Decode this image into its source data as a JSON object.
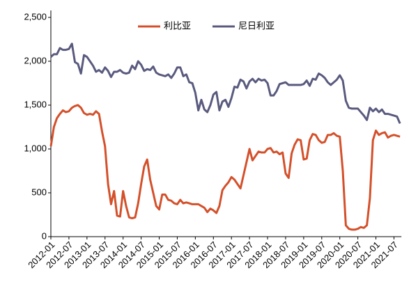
{
  "chart_data": {
    "type": "line",
    "categories": [
      "2012-01",
      null,
      null,
      null,
      null,
      null,
      "2012-07",
      null,
      null,
      null,
      null,
      null,
      "2013-01",
      null,
      null,
      null,
      null,
      null,
      "2013-07",
      null,
      null,
      null,
      null,
      null,
      "2014-01",
      null,
      null,
      null,
      null,
      null,
      "2014-07",
      null,
      null,
      null,
      null,
      null,
      "2015-01",
      null,
      null,
      null,
      null,
      null,
      "2015-07",
      null,
      null,
      null,
      null,
      null,
      "2016-01",
      null,
      null,
      null,
      null,
      null,
      "2016-07",
      null,
      null,
      null,
      null,
      null,
      "2017-01",
      null,
      null,
      null,
      null,
      null,
      "2017-07",
      null,
      null,
      null,
      null,
      null,
      "2018-01",
      null,
      null,
      null,
      null,
      null,
      "2018-07",
      null,
      null,
      null,
      null,
      null,
      "2019-01",
      null,
      null,
      null,
      null,
      null,
      "2019-07",
      null,
      null,
      null,
      null,
      null,
      "2020-01",
      null,
      null,
      null,
      null,
      null,
      "2020-07",
      null,
      null,
      null,
      null,
      null,
      "2021-01",
      null,
      null,
      null,
      null,
      null,
      "2021-07",
      null,
      null
    ],
    "series": [
      {
        "name": "利比亚",
        "color": "#d4502a",
        "values": [
          1030,
          1250,
          1350,
          1400,
          1440,
          1420,
          1430,
          1470,
          1490,
          1500,
          1470,
          1410,
          1390,
          1400,
          1390,
          1430,
          1400,
          1200,
          1030,
          600,
          370,
          520,
          240,
          230,
          520,
          350,
          220,
          210,
          220,
          380,
          600,
          800,
          880,
          650,
          500,
          350,
          310,
          480,
          480,
          420,
          410,
          380,
          370,
          420,
          380,
          390,
          380,
          370,
          370,
          370,
          350,
          330,
          280,
          320,
          300,
          270,
          350,
          530,
          580,
          620,
          680,
          650,
          600,
          550,
          700,
          850,
          1000,
          870,
          920,
          970,
          960,
          960,
          1000,
          1010,
          960,
          970,
          940,
          960,
          720,
          670,
          950,
          1050,
          1110,
          1100,
          880,
          890,
          1100,
          1170,
          1160,
          1100,
          1070,
          1080,
          1160,
          1160,
          1180,
          1150,
          1140,
          750,
          130,
          90,
          80,
          80,
          90,
          110,
          100,
          130,
          440,
          1100,
          1210,
          1160,
          1180,
          1190,
          1130,
          1150,
          1160,
          1150,
          1140
        ]
      },
      {
        "name": "尼日利亚",
        "color": "#595a7e",
        "values": [
          2050,
          2080,
          2080,
          2150,
          2130,
          2130,
          2140,
          2200,
          1990,
          1970,
          1860,
          2070,
          2050,
          2000,
          1950,
          1880,
          1900,
          1870,
          1930,
          1890,
          1820,
          1880,
          1880,
          1900,
          1870,
          1860,
          1870,
          1950,
          1910,
          2000,
          1960,
          1890,
          1910,
          1900,
          1940,
          1870,
          1850,
          1840,
          1830,
          1850,
          1810,
          1860,
          1930,
          1930,
          1830,
          1850,
          1760,
          1750,
          1640,
          1440,
          1560,
          1450,
          1420,
          1500,
          1620,
          1650,
          1440,
          1540,
          1560,
          1480,
          1580,
          1710,
          1700,
          1790,
          1770,
          1690,
          1770,
          1800,
          1760,
          1800,
          1780,
          1790,
          1750,
          1610,
          1610,
          1660,
          1740,
          1750,
          1760,
          1730,
          1730,
          1730,
          1730,
          1730,
          1740,
          1780,
          1720,
          1800,
          1790,
          1860,
          1840,
          1810,
          1760,
          1730,
          1760,
          1790,
          1840,
          1780,
          1550,
          1470,
          1460,
          1460,
          1460,
          1420,
          1380,
          1330,
          1470,
          1430,
          1460,
          1420,
          1450,
          1400,
          1400,
          1390,
          1380,
          1370,
          1290
        ]
      }
    ],
    "ylim": [
      0,
      2500
    ],
    "yticks": [
      0,
      500,
      {
        "value": 1000,
        "label": "1,000"
      },
      {
        "value": 1500,
        "label": "1,500"
      },
      {
        "value": 2000,
        "label": "2,000"
      },
      {
        "value": 2500,
        "label": "2,500"
      }
    ],
    "legend": "top",
    "grid": false
  }
}
